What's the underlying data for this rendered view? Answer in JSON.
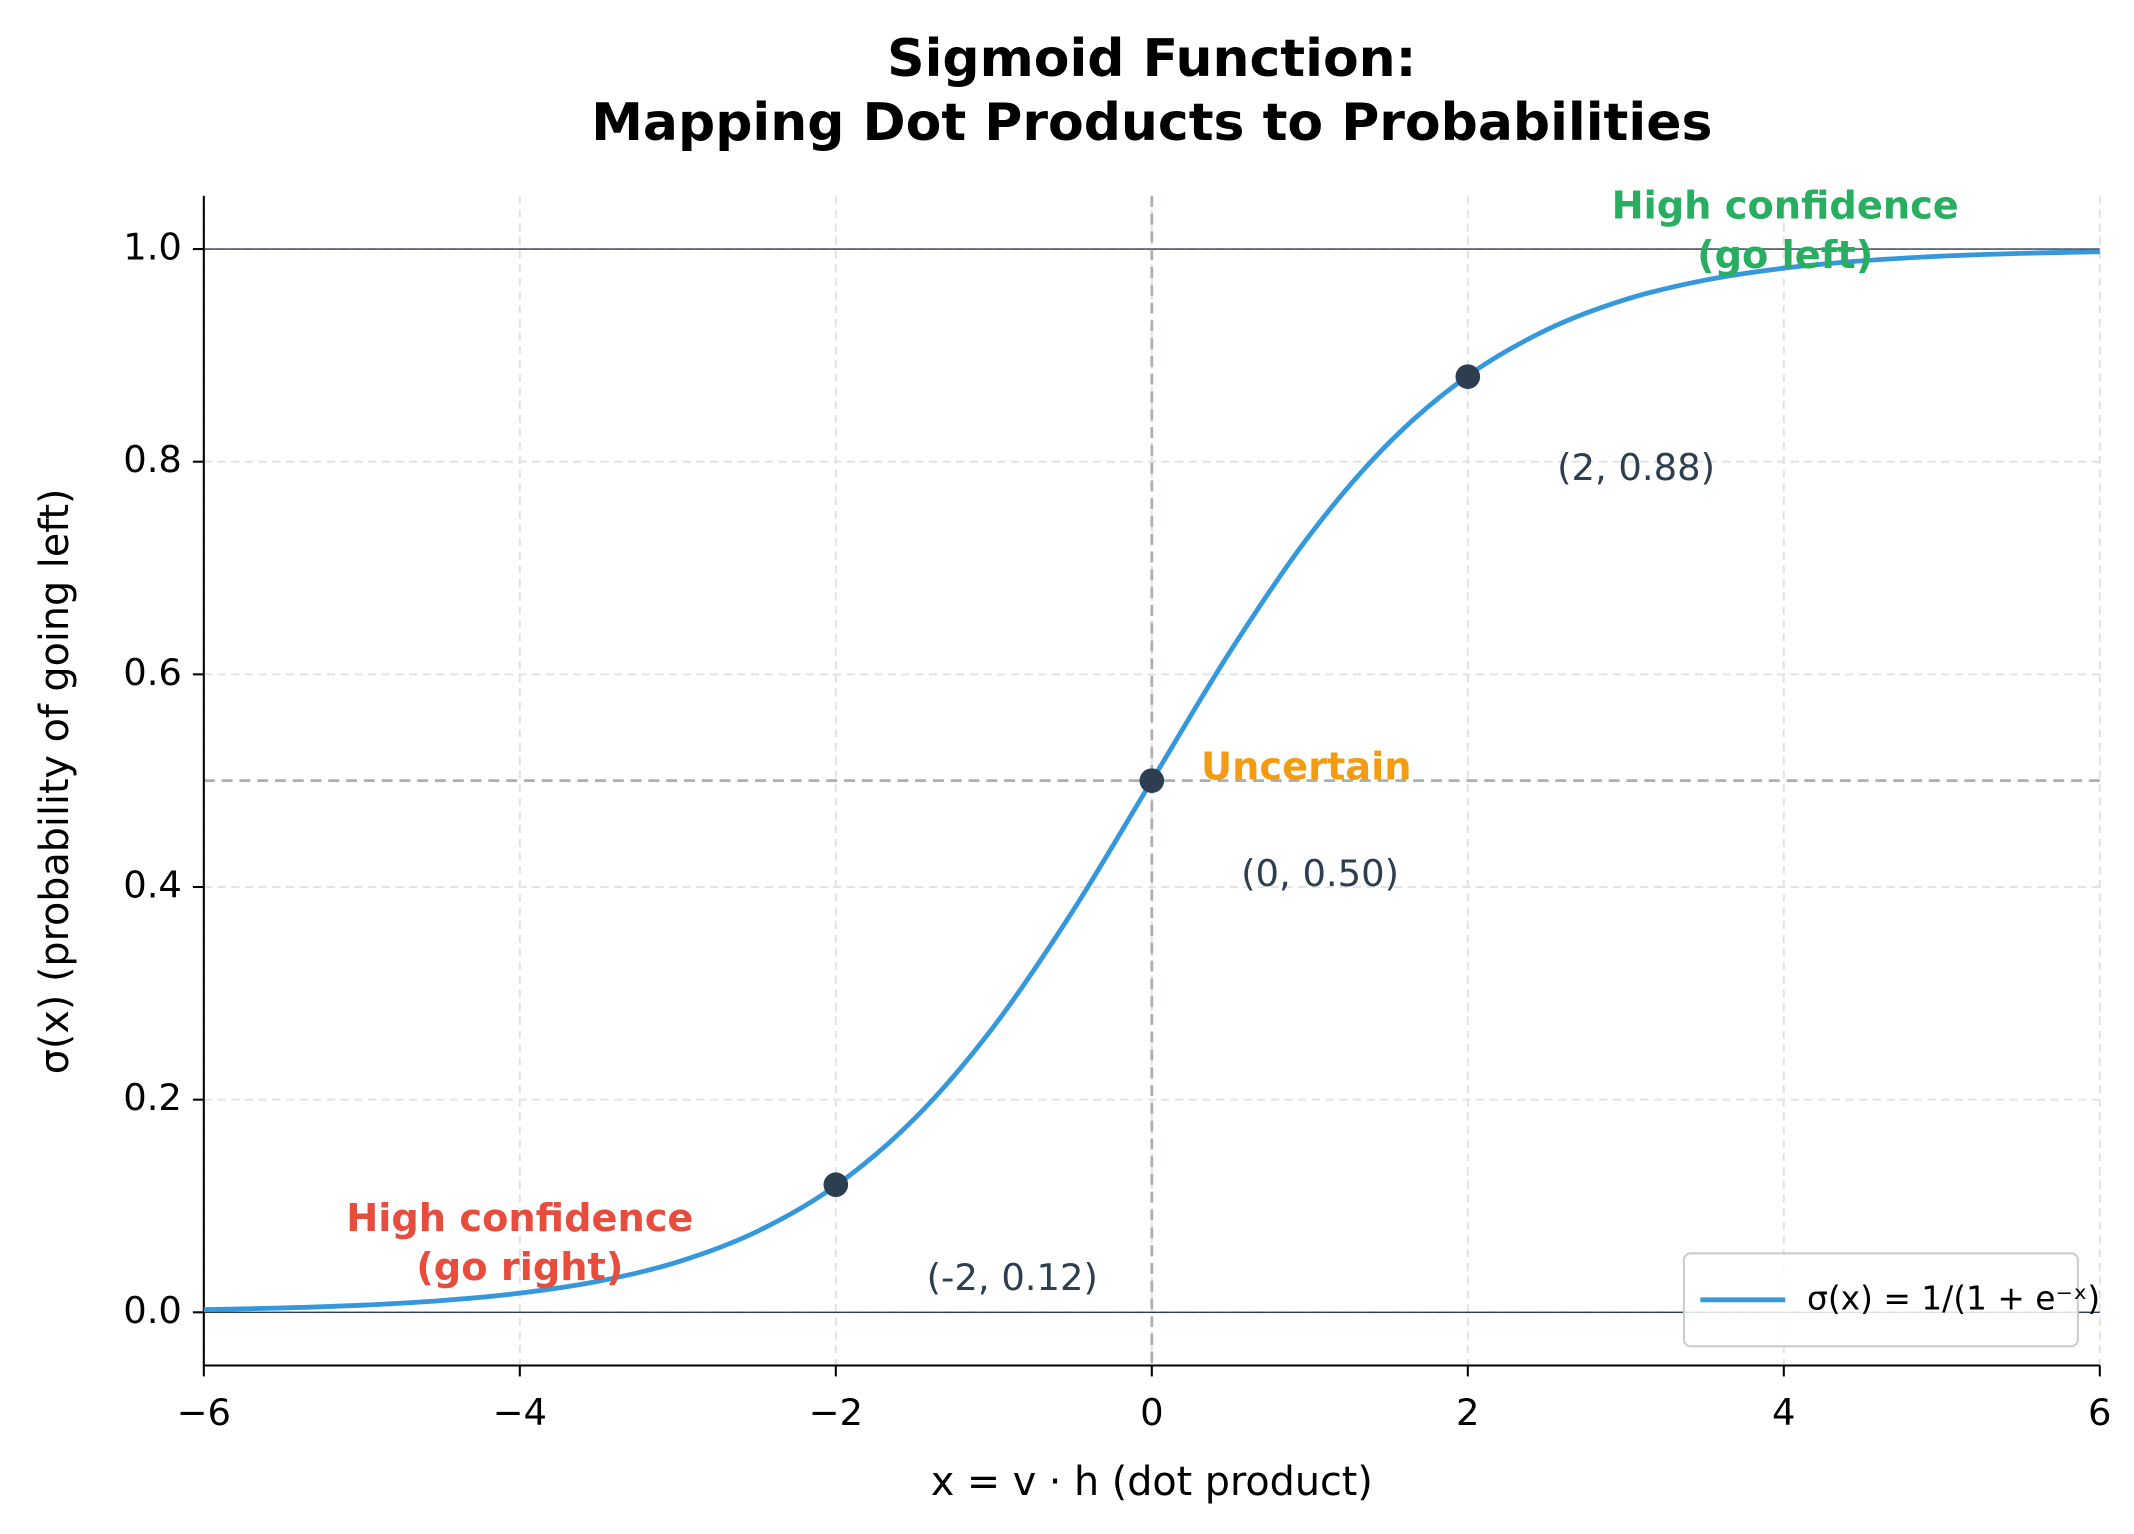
{
  "chart_data": {
    "type": "line",
    "title": [
      "Sigmoid Function:",
      "Mapping Dot Products to Probabilities"
    ],
    "x_label": "x = v · h (dot product)",
    "y_label": "σ(x) (probability of going left)",
    "x": [
      -6,
      -5.5,
      -5,
      -4.5,
      -4,
      -3.5,
      -3,
      -2.5,
      -2,
      -1.5,
      -1,
      -0.5,
      0,
      0.5,
      1,
      1.5,
      2,
      2.5,
      3,
      3.5,
      4,
      4.5,
      5,
      5.5,
      6
    ],
    "series": [
      {
        "name": "σ(x) = 1/(1 + e⁻ˣ)",
        "color": "#3498db",
        "values": [
          0.0025,
          0.0041,
          0.0067,
          0.011,
          0.018,
          0.0293,
          0.0474,
          0.0759,
          0.1192,
          0.1824,
          0.2689,
          0.3775,
          0.5,
          0.6225,
          0.7311,
          0.8176,
          0.8808,
          0.9241,
          0.9526,
          0.9707,
          0.982,
          0.989,
          0.9933,
          0.9959,
          0.9975
        ]
      }
    ],
    "points": {
      "color": "#2c3e50",
      "x": [
        -2,
        0,
        2
      ],
      "values": [
        0.12,
        0.5,
        0.88
      ],
      "value_labels": [
        "(-2, 0.12)",
        "(0, 0.50)",
        "(2, 0.88)"
      ]
    },
    "annotations": [
      {
        "lines": [
          "High confidence",
          "(go right)"
        ],
        "color": "#e74c3c"
      },
      {
        "lines": [
          "Uncertain"
        ],
        "color": "#f39c12"
      },
      {
        "lines": [
          "High confidence",
          "(go left)"
        ],
        "color": "#27ae60"
      }
    ],
    "hlines": [
      0,
      1
    ],
    "dashed_hline": 0.5,
    "dashed_vline": 0,
    "xlim": [
      -6,
      6
    ],
    "xticks": [
      {
        "value": -6,
        "label": "−6"
      },
      {
        "value": -4,
        "label": "−4"
      },
      {
        "value": -2,
        "label": "−2"
      },
      0,
      2,
      4,
      6
    ],
    "ylim": [
      -0.05,
      1.05
    ],
    "yticks": [
      {
        "value": 0,
        "label": "0.0"
      },
      0.2,
      0.4,
      0.6,
      0.8,
      {
        "value": 1,
        "label": "1.0"
      }
    ],
    "grid": true,
    "legend": "lower right"
  }
}
